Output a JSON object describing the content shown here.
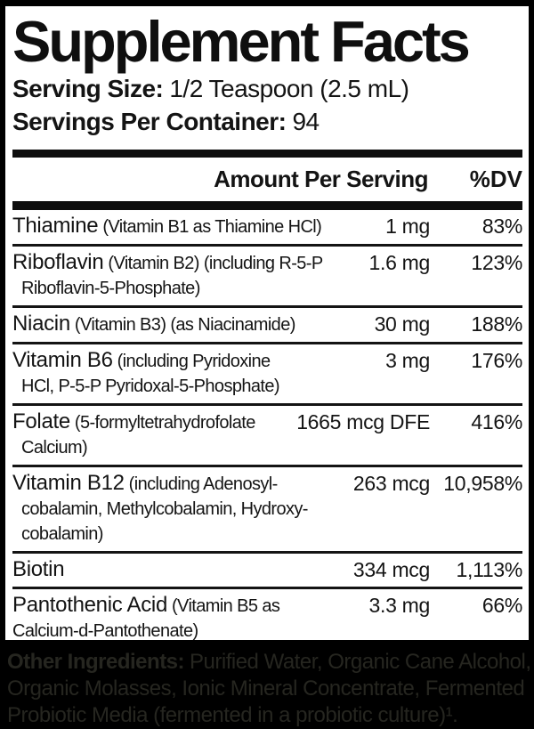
{
  "label": {
    "title": "Supplement Facts",
    "serving_size_label": "Serving Size:",
    "serving_size_value": "1/2 Teaspoon (2.5 mL)",
    "servings_label": "Servings Per Container:",
    "servings_value": "94",
    "header": {
      "amount": "Amount Per Serving",
      "dv": "%DV"
    },
    "rows": [
      {
        "name": "Thiamine",
        "detail1": "(Vitamin B1 as Thiamine HCl)",
        "amount": "1 mg",
        "dv": "83%"
      },
      {
        "name": "Riboflavin",
        "detail1": "(Vitamin B2) (including R-5-P",
        "detail2": "Riboflavin-5-Phosphate)",
        "amount": "1.6 mg",
        "dv": "123%"
      },
      {
        "name": "Niacin",
        "detail1": "(Vitamin B3) (as Niacinamide)",
        "amount": "30 mg",
        "dv": "188%"
      },
      {
        "name": "Vitamin B6",
        "detail1": "(including Pyridoxine",
        "detail2": "HCl, P-5-P Pyridoxal-5-Phosphate)",
        "amount": "3 mg",
        "dv": "176%"
      },
      {
        "name": "Folate",
        "detail1": "(5-formyltetrahydrofolate",
        "detail2": "Calcium)",
        "amount": "1665 mcg DFE",
        "dv": "416%"
      },
      {
        "name": "Vitamin B12",
        "detail1": "(including Adenosyl-",
        "detail2": "cobalamin, Methylcobalamin, Hydroxy-",
        "detail3": "cobalamin)",
        "amount": "263 mcg",
        "dv": "10,958%"
      },
      {
        "name": "Biotin",
        "amount": "334 mcg",
        "dv": "1,113%"
      },
      {
        "name": "Pantothenic Acid",
        "detail1": "(Vitamin B5 as",
        "detail2": "Calcium-d-Pantothenate)",
        "amount": "3.3 mg",
        "dv": "66%"
      }
    ],
    "other_ingredients": {
      "label": "Other Ingredients:",
      "line1": "Purified Water, Organic Cane Alcohol,",
      "line2": "Organic Molasses, Ionic Mineral Concentrate, Fermented",
      "line3": "Probiotic Media (fermented in a probiotic culture)¹."
    },
    "colors": {
      "panel_bg": "#ffffff",
      "ink": "#141414",
      "frame": "#000000",
      "footer_text": "#262620"
    }
  }
}
